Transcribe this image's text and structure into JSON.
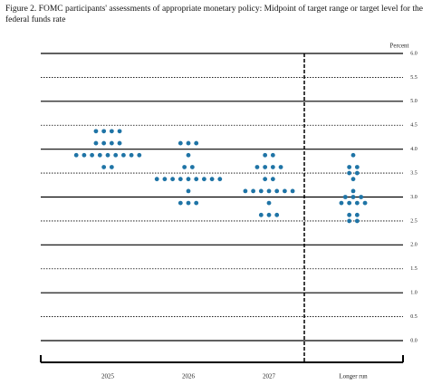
{
  "chart_data": {
    "type": "dot",
    "title": "Figure 2. FOMC participants' assessments of appropriate monetary policy: Midpoint of target range or target level for the federal funds rate",
    "y_axis_label": "Percent",
    "color": "#1f74a6",
    "categories": [
      "2025",
      "2026",
      "2027",
      "Longer run"
    ],
    "dots": [
      [
        4.375,
        4.375,
        4.375,
        4.375,
        4.125,
        4.125,
        4.125,
        4.125,
        3.875,
        3.875,
        3.875,
        3.875,
        3.875,
        3.875,
        3.875,
        3.875,
        3.875,
        3.625,
        3.625
      ],
      [
        4.125,
        4.125,
        4.125,
        3.875,
        3.625,
        3.625,
        3.375,
        3.375,
        3.375,
        3.375,
        3.375,
        3.375,
        3.375,
        3.375,
        3.375,
        3.125,
        2.875,
        2.875,
        2.875
      ],
      [
        3.875,
        3.875,
        3.625,
        3.625,
        3.625,
        3.625,
        3.375,
        3.375,
        3.125,
        3.125,
        3.125,
        3.125,
        3.125,
        3.125,
        3.125,
        2.875,
        2.625,
        2.625,
        2.625
      ],
      [
        3.875,
        3.625,
        3.625,
        3.5,
        3.5,
        3.375,
        3.125,
        3.0,
        3.0,
        3.0,
        2.875,
        2.875,
        2.875,
        2.875,
        2.625,
        2.625,
        2.5,
        2.5
      ]
    ],
    "ylim": [
      0,
      6
    ],
    "yticks": [
      {
        "value": 0,
        "label": "0.0"
      },
      {
        "value": 0.5,
        "label": "0.5"
      },
      {
        "value": 1,
        "label": "1.0"
      },
      {
        "value": 1.5,
        "label": "1.5"
      },
      {
        "value": 2,
        "label": "2.0"
      },
      {
        "value": 2.5,
        "label": "2.5"
      },
      {
        "value": 3,
        "label": "3.0"
      },
      {
        "value": 3.5,
        "label": "3.5"
      },
      {
        "value": 4,
        "label": "4.0"
      },
      {
        "value": 4.5,
        "label": "4.5"
      },
      {
        "value": 5,
        "label": "5.0"
      },
      {
        "value": 5.5,
        "label": "5.5"
      },
      {
        "value": 6,
        "label": "6.0"
      }
    ],
    "grid": true
  }
}
